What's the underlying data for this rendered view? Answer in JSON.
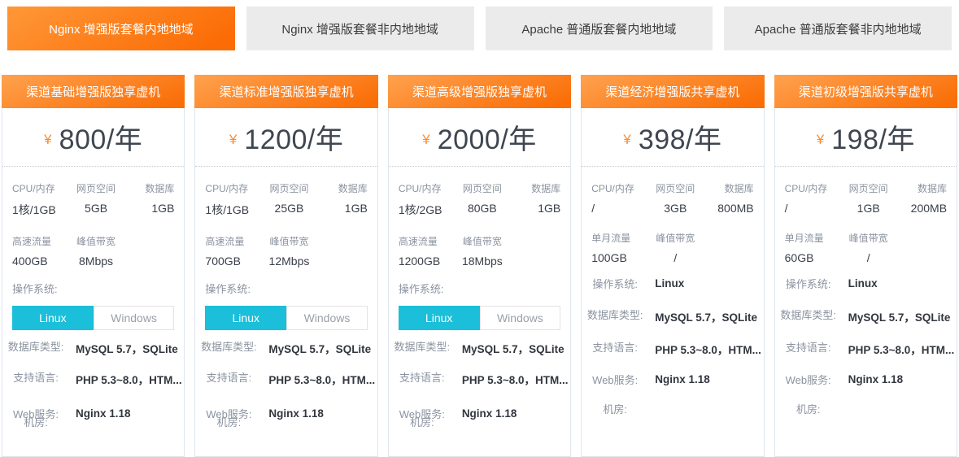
{
  "tabs": [
    {
      "label": "Nginx 增强版套餐内地地域",
      "active": true
    },
    {
      "label": "Nginx 增强版套餐非内地地域",
      "active": false
    },
    {
      "label": "Apache 普通版套餐内地地域",
      "active": false
    },
    {
      "label": "Apache 普通版套餐非内地地域",
      "active": false
    }
  ],
  "colors": {
    "accent_orange": "#fb6c05",
    "accent_cyan": "#1bbfd9",
    "inactive_tab_bg": "#ebebeb",
    "card_border": "#dfe6ed",
    "label_gray": "#8b93a0",
    "price_text": "#3f4651"
  },
  "cards": [
    {
      "title": "渠道基础增强版独享虚机",
      "currency": "¥",
      "price": "800/年",
      "specs": [
        {
          "label": "CPU/内存",
          "value": "1核/1GB"
        },
        {
          "label": "网页空间",
          "value": "5GB"
        },
        {
          "label": "数据库",
          "value": "1GB"
        },
        {
          "label": "高速流量",
          "value": "400GB"
        },
        {
          "label": "峰值带宽",
          "value": "8Mbps"
        }
      ],
      "os_label": "操作系统:",
      "os_options": [
        "Linux",
        "Windows"
      ],
      "os_selected": "Linux",
      "rows": [
        {
          "label": "数据库类型:",
          "value": "MySQL 5.7，SQLite"
        },
        {
          "label": "支持语言:",
          "value": "PHP 5.3~8.0，HTM..."
        },
        {
          "label": "Web服务:",
          "value": "Nginx 1.18"
        },
        {
          "label": "机房:",
          "value": ""
        }
      ]
    },
    {
      "title": "渠道标准增强版独享虚机",
      "currency": "¥",
      "price": "1200/年",
      "specs": [
        {
          "label": "CPU/内存",
          "value": "1核/1GB"
        },
        {
          "label": "网页空间",
          "value": "25GB"
        },
        {
          "label": "数据库",
          "value": "1GB"
        },
        {
          "label": "高速流量",
          "value": "700GB"
        },
        {
          "label": "峰值带宽",
          "value": "12Mbps"
        }
      ],
      "os_label": "操作系统:",
      "os_options": [
        "Linux",
        "Windows"
      ],
      "os_selected": "Linux",
      "rows": [
        {
          "label": "数据库类型:",
          "value": "MySQL 5.7，SQLite"
        },
        {
          "label": "支持语言:",
          "value": "PHP 5.3~8.0，HTM..."
        },
        {
          "label": "Web服务:",
          "value": "Nginx 1.18"
        },
        {
          "label": "机房:",
          "value": ""
        }
      ]
    },
    {
      "title": "渠道高级增强版独享虚机",
      "currency": "¥",
      "price": "2000/年",
      "specs": [
        {
          "label": "CPU/内存",
          "value": "1核/2GB"
        },
        {
          "label": "网页空间",
          "value": "80GB"
        },
        {
          "label": "数据库",
          "value": "1GB"
        },
        {
          "label": "高速流量",
          "value": "1200GB"
        },
        {
          "label": "峰值带宽",
          "value": "18Mbps"
        }
      ],
      "os_label": "操作系统:",
      "os_options": [
        "Linux",
        "Windows"
      ],
      "os_selected": "Linux",
      "rows": [
        {
          "label": "数据库类型:",
          "value": "MySQL 5.7，SQLite"
        },
        {
          "label": "支持语言:",
          "value": "PHP 5.3~8.0，HTM..."
        },
        {
          "label": "Web服务:",
          "value": "Nginx 1.18"
        },
        {
          "label": "机房:",
          "value": ""
        }
      ]
    },
    {
      "title": "渠道经济增强版共享虚机",
      "currency": "¥",
      "price": "398/年",
      "specs": [
        {
          "label": "CPU/内存",
          "value": "/"
        },
        {
          "label": "网页空间",
          "value": "3GB"
        },
        {
          "label": "数据库",
          "value": "800MB"
        },
        {
          "label": "单月流量",
          "value": "100GB"
        },
        {
          "label": "峰值带宽",
          "value": "/"
        }
      ],
      "rows": [
        {
          "label": "操作系统:",
          "value": "Linux"
        },
        {
          "label": "数据库类型:",
          "value": "MySQL 5.7，SQLite"
        },
        {
          "label": "支持语言:",
          "value": "PHP 5.3~8.0，HTM..."
        },
        {
          "label": "Web服务:",
          "value": "Nginx 1.18"
        },
        {
          "label": "机房:",
          "value": ""
        }
      ]
    },
    {
      "title": "渠道初级增强版共享虚机",
      "currency": "¥",
      "price": "198/年",
      "specs": [
        {
          "label": "CPU/内存",
          "value": "/"
        },
        {
          "label": "网页空间",
          "value": "1GB"
        },
        {
          "label": "数据库",
          "value": "200MB"
        },
        {
          "label": "单月流量",
          "value": "60GB"
        },
        {
          "label": "峰值带宽",
          "value": "/"
        }
      ],
      "rows": [
        {
          "label": "操作系统:",
          "value": "Linux"
        },
        {
          "label": "数据库类型:",
          "value": "MySQL 5.7，SQLite"
        },
        {
          "label": "支持语言:",
          "value": "PHP 5.3~8.0，HTM..."
        },
        {
          "label": "Web服务:",
          "value": "Nginx 1.18"
        },
        {
          "label": "机房:",
          "value": ""
        }
      ]
    }
  ]
}
